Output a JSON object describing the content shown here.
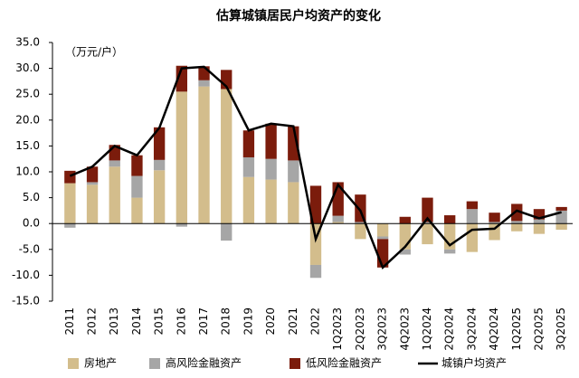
{
  "chart_data": {
    "type": "stacked-bar-line",
    "title": "估算城镇居民户均资产的变化",
    "unit_note": "（万元/户）",
    "categories": [
      "2011",
      "2012",
      "2013",
      "2014",
      "2015",
      "2016",
      "2017",
      "2018",
      "2019",
      "2020",
      "2021",
      "2022",
      "1Q2023",
      "2Q2023",
      "3Q2023",
      "4Q2023",
      "1Q2024",
      "2Q2024",
      "3Q2024",
      "4Q2024",
      "1Q2025",
      "2Q2025",
      "3Q2025"
    ],
    "series": [
      {
        "name": "房地产",
        "color": "#d3bd8c",
        "kind": "bar",
        "values": [
          7.8,
          7.5,
          11.0,
          5.0,
          10.3,
          25.5,
          26.5,
          26.0,
          9.0,
          8.5,
          8.0,
          -8.0,
          0.3,
          -3.0,
          -2.5,
          -5.0,
          -4.0,
          -5.0,
          -5.5,
          -3.2,
          -1.5,
          -2.0,
          -1.2
        ]
      },
      {
        "name": "高风险金融资产",
        "color": "#a6a6a6",
        "kind": "bar",
        "values": [
          -0.8,
          0.5,
          1.2,
          4.2,
          2.0,
          -0.6,
          1.2,
          -3.3,
          3.8,
          4.0,
          4.2,
          -2.5,
          1.2,
          0.3,
          -0.5,
          -1.0,
          0.3,
          -0.8,
          2.8,
          0.3,
          0.5,
          0.8,
          2.5
        ]
      },
      {
        "name": "低风险金融资产",
        "color": "#7b1c0c",
        "kind": "bar",
        "values": [
          2.4,
          3.0,
          3.0,
          4.0,
          6.3,
          5.0,
          2.7,
          3.7,
          5.2,
          6.8,
          6.6,
          7.3,
          6.5,
          5.3,
          -5.5,
          1.3,
          4.7,
          1.6,
          1.5,
          1.8,
          3.3,
          2.0,
          0.7
        ]
      },
      {
        "name": "城镇户均资产",
        "color": "#000000",
        "kind": "line",
        "values": [
          9.2,
          11.0,
          15.0,
          13.2,
          18.5,
          30.0,
          30.3,
          26.5,
          18.0,
          19.3,
          18.8,
          -3.0,
          7.5,
          2.5,
          -8.5,
          -4.5,
          1.0,
          -4.2,
          -1.2,
          -1.0,
          2.5,
          1.0,
          2.2
        ]
      }
    ],
    "ylim": [
      -15,
      35
    ],
    "yticks": [
      {
        "value": -15,
        "label": "-15.0"
      },
      {
        "value": -10,
        "label": "-10.0"
      },
      {
        "value": -5,
        "label": "-5.0"
      },
      {
        "value": 0,
        "label": "0.0"
      },
      {
        "value": 5,
        "label": "5.0"
      },
      {
        "value": 10,
        "label": "10.0"
      },
      {
        "value": 15,
        "label": "15.0"
      },
      {
        "value": 20,
        "label": "20.0"
      },
      {
        "value": 25,
        "label": "25.0"
      },
      {
        "value": 30,
        "label": "30.0"
      },
      {
        "value": 35,
        "label": "35.0"
      }
    ]
  }
}
